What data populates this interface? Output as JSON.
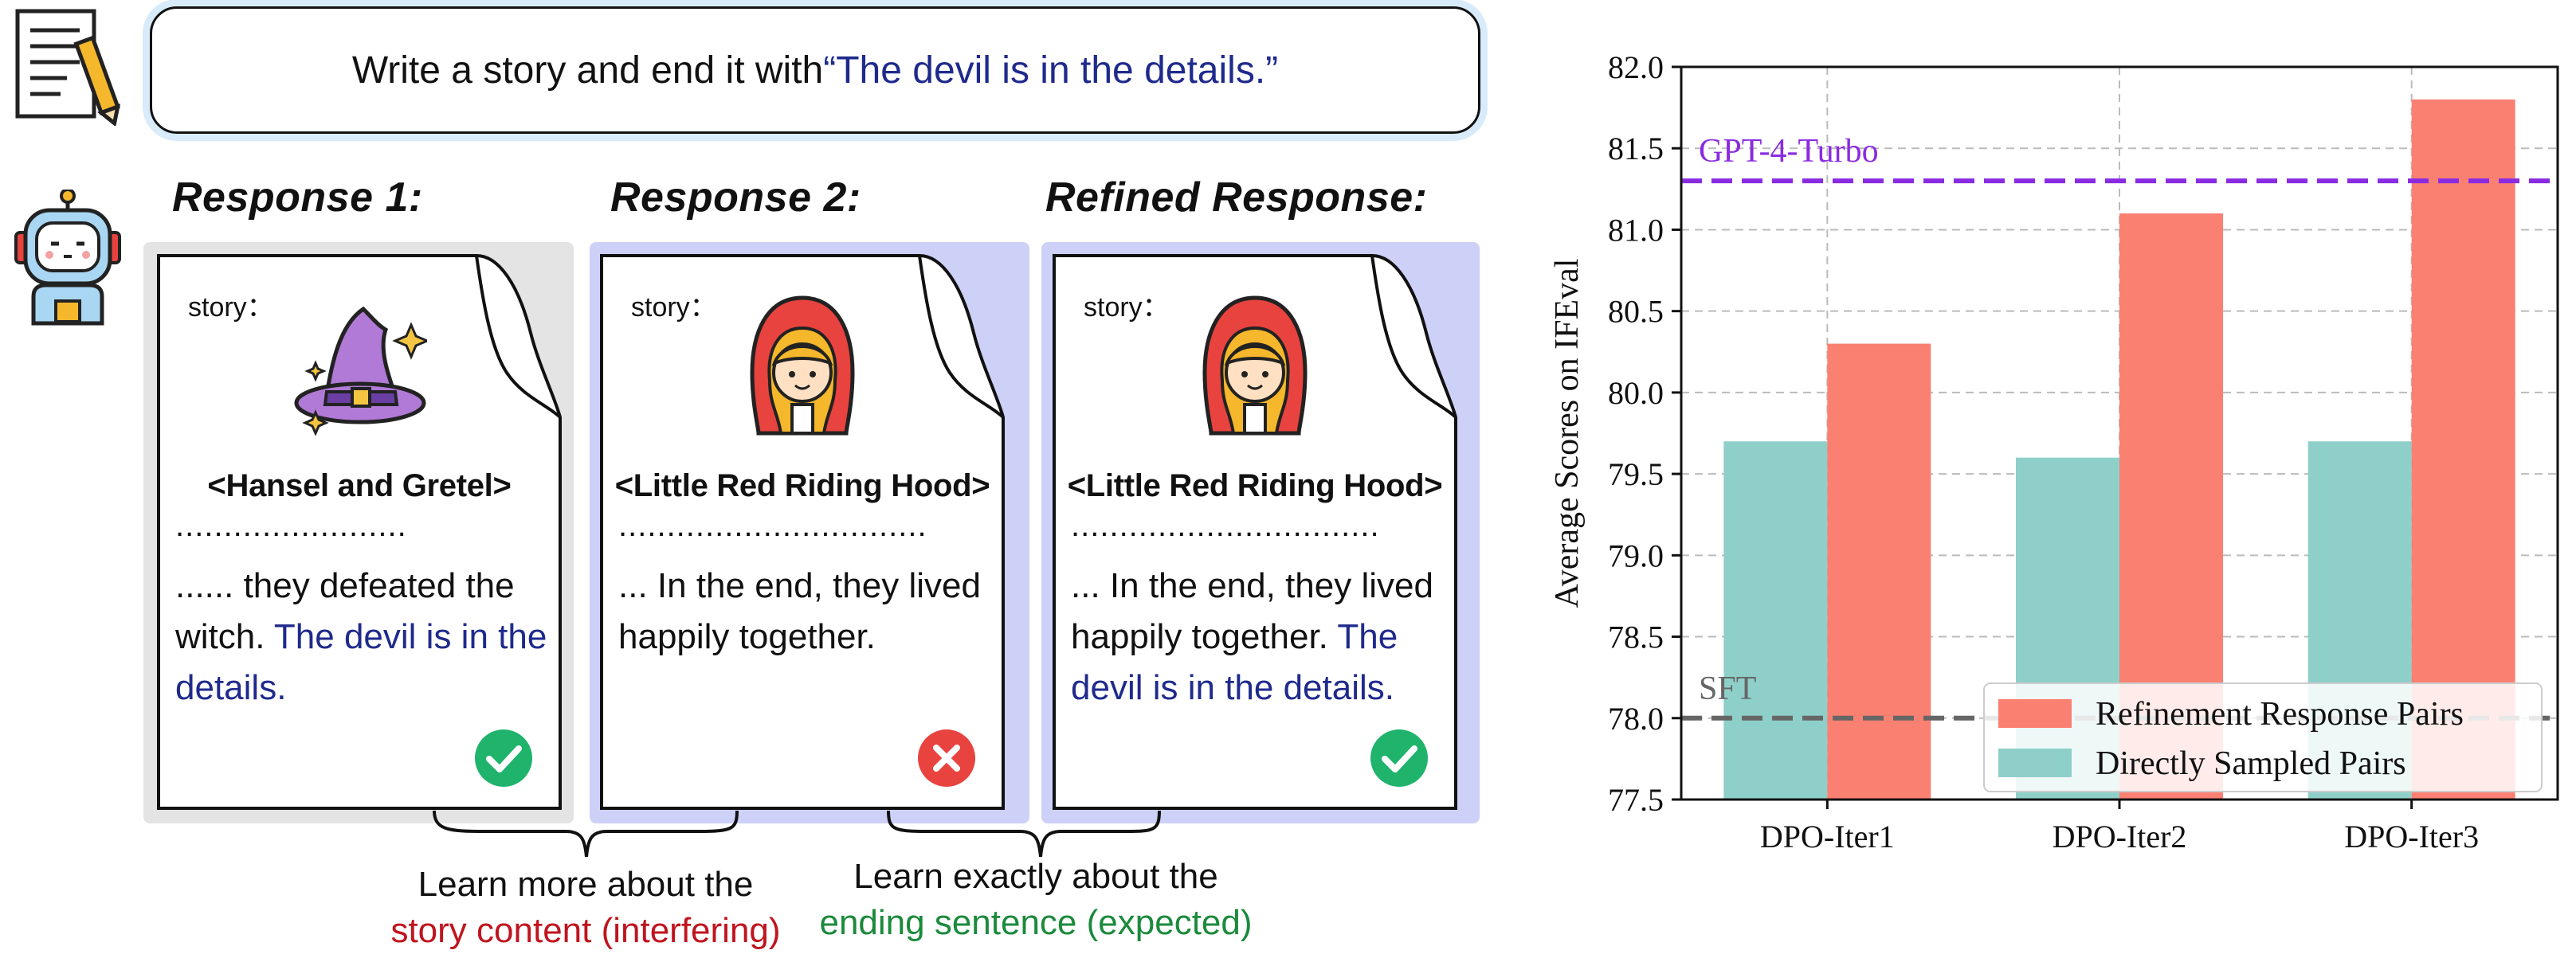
{
  "prompt": {
    "text": "Write a story and end it with ",
    "quote": "“The devil is in the details.”"
  },
  "responses": [
    {
      "heading": "Response 1:",
      "story_label": "story：",
      "title": "<Hansel and Gretel>",
      "dots": "........................",
      "text_main": "...... they defeated the witch. ",
      "text_tail": "The devil is in the details.",
      "status": "correct"
    },
    {
      "heading": "Response 2:",
      "story_label": "story：",
      "title": "<Little Red Riding Hood>",
      "dots": "................................",
      "text_main": "... In the end, they lived happily together.",
      "text_tail": "",
      "status": "incorrect"
    },
    {
      "heading": "Refined Response:",
      "story_label": "story：",
      "title": "<Little Red Riding Hood>",
      "dots": "................................",
      "text_main": "... In the end, they lived happily together. ",
      "text_tail": "The devil is in the details.",
      "status": "correct"
    }
  ],
  "notes": {
    "left_line1": "Learn more about the",
    "left_line2": "story content (interfering)",
    "right_line1": "Learn exactly about the",
    "right_line2": "ending sentence (expected)"
  },
  "colors": {
    "refinement": "#fa8072",
    "direct": "#8ecfc9",
    "gpt4_line": "#8a2be2",
    "sft_line": "#666666",
    "quote_blue": "#1f2a8c",
    "check_green": "#1fb36b",
    "cross_red": "#e8433f"
  },
  "chart_data": {
    "type": "bar",
    "categories": [
      "DPO-Iter1",
      "DPO-Iter2",
      "DPO-Iter3"
    ],
    "series": [
      {
        "name": "Directly Sampled Pairs",
        "values": [
          79.7,
          79.6,
          79.7
        ]
      },
      {
        "name": "Refinement Response Pairs",
        "values": [
          80.3,
          81.1,
          81.8
        ]
      }
    ],
    "reference_lines": [
      {
        "label": "GPT-4-Turbo",
        "value": 81.3,
        "style": "dashed"
      },
      {
        "label": "SFT",
        "value": 78.0,
        "style": "dashed"
      }
    ],
    "ylabel": "Average Scores on IFEval",
    "ylim": [
      77.5,
      82.0
    ],
    "yticks": [
      "77.5",
      "78.0",
      "78.5",
      "79.0",
      "79.5",
      "80.0",
      "80.5",
      "81.0",
      "81.5",
      "82.0"
    ],
    "grid": true,
    "legend_position": "lower-right",
    "legend_order": [
      "Refinement Response Pairs",
      "Directly Sampled Pairs"
    ]
  }
}
